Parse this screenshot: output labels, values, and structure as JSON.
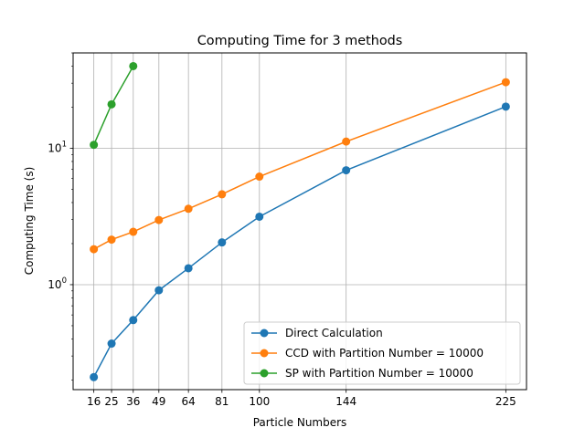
{
  "chart_data": {
    "type": "line",
    "title": "Computing Time for 3 methods",
    "xlabel": "Particle Numbers",
    "ylabel": "Computing Time (s)",
    "xlim": [
      5.5,
      235.5
    ],
    "ylim": [
      0.17,
      50
    ],
    "yscale": "log",
    "grid": true,
    "legend_position": "lower-right",
    "x_ticks": [
      16,
      25,
      36,
      49,
      64,
      81,
      100,
      144,
      225
    ],
    "y_ticks": [
      {
        "value": 1,
        "base": "10",
        "exp": "0"
      },
      {
        "value": 10,
        "base": "10",
        "exp": "1"
      }
    ],
    "series": [
      {
        "name": "Direct Calculation",
        "color": "#1f77b4",
        "x": [
          16,
          25,
          36,
          49,
          64,
          81,
          100,
          144,
          225
        ],
        "y": [
          0.21,
          0.37,
          0.55,
          0.91,
          1.32,
          2.04,
          3.15,
          6.9,
          20.2
        ]
      },
      {
        "name": "CCD with Partition Number = 10000",
        "color": "#ff7f0e",
        "x": [
          16,
          25,
          36,
          49,
          64,
          81,
          100,
          144,
          225
        ],
        "y": [
          1.82,
          2.14,
          2.44,
          2.98,
          3.6,
          4.6,
          6.2,
          11.2,
          30.5
        ]
      },
      {
        "name": "SP with Partition Number = 10000",
        "color": "#2ca02c",
        "x": [
          16,
          25,
          36
        ],
        "y": [
          10.6,
          21.0,
          40.0
        ]
      }
    ]
  }
}
